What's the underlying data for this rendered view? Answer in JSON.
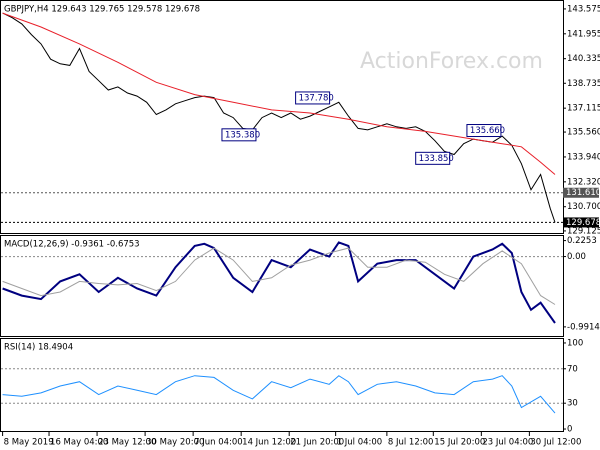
{
  "watermark": "ActionForex.com",
  "chart_data": [
    {
      "type": "line",
      "title": "GBPJPY,H4  129.643 129.765 129.578 129.678",
      "xlim": [
        -1,
        350
      ],
      "ylim": [
        128.99,
        144.09
      ],
      "yticks": [
        143.575,
        141.955,
        140.335,
        138.735,
        137.115,
        {
          "value": 135.56,
          "label": "135.560"
        },
        {
          "value": 133.94,
          "label": "133.940"
        },
        {
          "value": 132.32,
          "label": "132.320"
        },
        {
          "value": 130.7,
          "label": "130.700"
        },
        129.125
      ],
      "series": [
        {
          "color": "#000000",
          "x": [
            0,
            6,
            12,
            18,
            24,
            30,
            36,
            42,
            48,
            54,
            60,
            66,
            72,
            78,
            84,
            90,
            96,
            102,
            108,
            114,
            120,
            126,
            132,
            138,
            144,
            150,
            156,
            162,
            168,
            174,
            180,
            186,
            192,
            198,
            204,
            210,
            216,
            222,
            228,
            234,
            240,
            246,
            252,
            258,
            264,
            270,
            276,
            282,
            288,
            294,
            300,
            306,
            312,
            318,
            324,
            330,
            336,
            342,
            345
          ],
          "values": [
            143.3,
            143.0,
            142.6,
            141.9,
            141.3,
            140.3,
            140.0,
            139.9,
            141.0,
            139.5,
            138.9,
            138.3,
            138.5,
            138.1,
            137.9,
            137.5,
            136.7,
            137.0,
            137.4,
            137.6,
            137.8,
            137.9,
            137.8,
            136.8,
            136.5,
            135.8,
            135.7,
            136.5,
            136.8,
            136.5,
            136.8,
            136.4,
            136.6,
            136.9,
            137.2,
            137.5,
            136.6,
            135.8,
            135.7,
            135.9,
            136.1,
            135.9,
            135.8,
            135.9,
            135.6,
            135.0,
            134.3,
            134.1,
            134.8,
            135.1,
            135.0,
            134.9,
            135.3,
            134.7,
            133.5,
            131.8,
            132.8,
            130.6,
            129.678
          ]
        },
        {
          "color": "#e8202a",
          "x": [
            0,
            24,
            48,
            72,
            96,
            120,
            144,
            168,
            192,
            216,
            240,
            264,
            288,
            312,
            324,
            336,
            345
          ],
          "values": [
            143.3,
            142.4,
            141.3,
            140.1,
            138.8,
            138.0,
            137.5,
            137.0,
            136.8,
            136.4,
            135.9,
            135.6,
            135.2,
            134.8,
            134.6,
            133.6,
            132.8
          ]
        }
      ],
      "levels": [
        {
          "value": 131.61,
          "label": "131.610",
          "color": "#555555"
        },
        {
          "value": 129.678,
          "label": "129.678",
          "color": "#000000"
        }
      ],
      "annotations": [
        {
          "x": 183,
          "value": 137.78,
          "label": "137.780"
        },
        {
          "x": 137,
          "value": 135.38,
          "label": "135.380"
        },
        {
          "x": 258,
          "value": 133.85,
          "label": "133.850"
        },
        {
          "x": 290,
          "value": 135.66,
          "label": "135.660"
        }
      ]
    },
    {
      "type": "line",
      "title": "MACD(12,26,9) -0.9361 -0.6753",
      "xlim": [
        -1,
        350
      ],
      "ylim": [
        -1.12,
        0.29
      ],
      "yticks": [
        0.2253,
        {
          "value": 0,
          "label": "0.00"
        },
        -0.9914
      ],
      "levels": [
        0
      ],
      "series": [
        {
          "color": "#000080",
          "width": 2,
          "x": [
            0,
            12,
            24,
            36,
            48,
            60,
            72,
            84,
            96,
            108,
            120,
            126,
            132,
            144,
            156,
            168,
            180,
            192,
            204,
            210,
            216,
            222,
            234,
            246,
            258,
            270,
            282,
            294,
            306,
            312,
            318,
            324,
            330,
            336,
            345
          ],
          "values": [
            -0.45,
            -0.55,
            -0.6,
            -0.35,
            -0.25,
            -0.5,
            -0.3,
            -0.45,
            -0.55,
            -0.15,
            0.15,
            0.18,
            0.12,
            -0.3,
            -0.5,
            -0.05,
            -0.15,
            0.1,
            0.0,
            0.2,
            0.15,
            -0.35,
            -0.1,
            -0.05,
            -0.05,
            -0.25,
            -0.45,
            0.0,
            0.1,
            0.18,
            0.05,
            -0.5,
            -0.75,
            -0.65,
            -0.9361
          ]
        },
        {
          "color": "#a0a0a0",
          "width": 1,
          "x": [
            0,
            12,
            24,
            36,
            48,
            60,
            72,
            84,
            96,
            108,
            120,
            132,
            144,
            156,
            168,
            180,
            192,
            204,
            216,
            228,
            240,
            252,
            264,
            276,
            288,
            300,
            312,
            324,
            336,
            345
          ],
          "values": [
            -0.35,
            -0.45,
            -0.55,
            -0.5,
            -0.35,
            -0.38,
            -0.4,
            -0.38,
            -0.48,
            -0.35,
            -0.05,
            0.12,
            -0.05,
            -0.35,
            -0.3,
            -0.12,
            -0.05,
            0.05,
            0.12,
            -0.15,
            -0.15,
            -0.05,
            -0.08,
            -0.25,
            -0.35,
            -0.1,
            0.08,
            -0.1,
            -0.55,
            -0.6753
          ]
        }
      ]
    },
    {
      "type": "line",
      "title": "RSI(14) 18.4904",
      "xlim": [
        -1,
        350
      ],
      "ylim": [
        -2.3,
        104.6
      ],
      "yticks": [
        100,
        70,
        30,
        0
      ],
      "levels": [
        70,
        30
      ],
      "xticks": [
        {
          "value": 0,
          "label": "8 May 2019"
        },
        {
          "value": 29,
          "label": "16 May 04:00"
        },
        {
          "value": 59,
          "label": "23 May 12:00"
        },
        {
          "value": 89,
          "label": "30 May 20:00"
        },
        {
          "value": 119,
          "label": "7 Jun 04:00"
        },
        {
          "value": 149,
          "label": "14 Jun 12:00"
        },
        {
          "value": 179,
          "label": "21 Jun 20:00"
        },
        {
          "value": 208,
          "label": "1 Jul 04:00"
        },
        {
          "value": 240,
          "label": "8 Jul 12:00"
        },
        {
          "value": 269,
          "label": "15 Jul 20:00"
        },
        {
          "value": 299,
          "label": "23 Jul 04:00"
        },
        {
          "value": 329,
          "label": "30 Jul 12:00"
        }
      ],
      "series": [
        {
          "color": "#1e90ff",
          "width": 1,
          "x": [
            0,
            12,
            24,
            36,
            48,
            60,
            72,
            84,
            96,
            108,
            120,
            132,
            144,
            156,
            168,
            180,
            192,
            204,
            210,
            216,
            222,
            234,
            246,
            258,
            270,
            282,
            294,
            306,
            312,
            318,
            324,
            336,
            345
          ],
          "values": [
            40,
            38,
            42,
            50,
            55,
            40,
            50,
            45,
            40,
            55,
            62,
            60,
            45,
            35,
            55,
            48,
            58,
            52,
            62,
            55,
            40,
            52,
            55,
            50,
            42,
            40,
            55,
            58,
            62,
            50,
            25,
            38,
            18.4904
          ]
        }
      ]
    }
  ]
}
